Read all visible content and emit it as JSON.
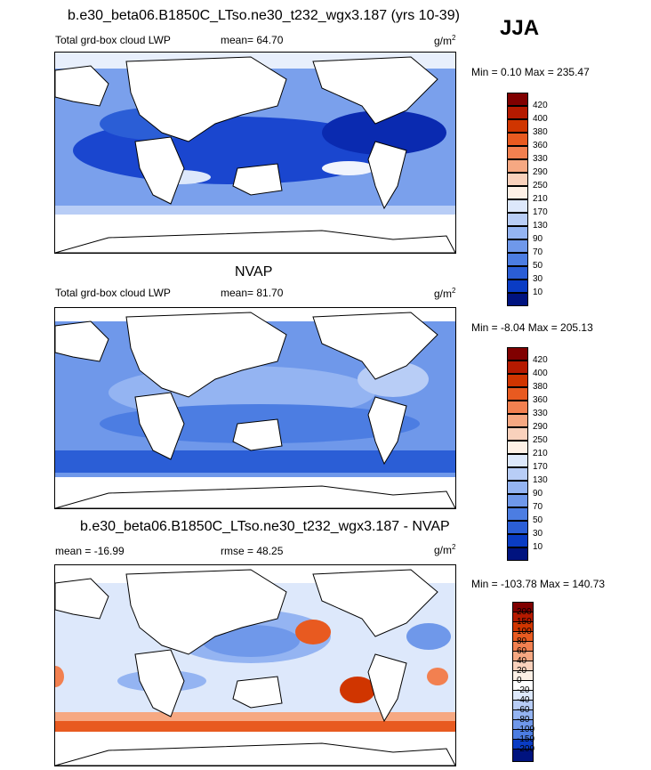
{
  "season": "JJA",
  "panels": [
    {
      "title": "b.e30_beta06.B1850C_LTso.ne30_t232_wgx3.187 (yrs 10-39)",
      "left_label": "Total grd-box cloud LWP",
      "mid_label": "mean=  64.70",
      "units": "g/m",
      "units_exp": "2",
      "minmax": "Min =   0.10 Max = 235.47",
      "levels": [
        "420",
        "400",
        "380",
        "360",
        "330",
        "290",
        "250",
        "210",
        "170",
        "130",
        "90",
        "70",
        "50",
        "30",
        "10"
      ],
      "colors": [
        "#800000",
        "#b51a00",
        "#d03500",
        "#e85a20",
        "#f28050",
        "#f6a882",
        "#f9d1bc",
        "#fdf0e6",
        "#dde8fb",
        "#b8cdf6",
        "#94b4f2",
        "#6f98ea",
        "#4c7de2",
        "#2b5ed6",
        "#0a3cc4",
        "#00137f"
      ]
    },
    {
      "title": "NVAP",
      "left_label": "Total grd-box cloud LWP",
      "mid_label": "mean=  81.70",
      "units": "g/m",
      "units_exp": "2",
      "minmax": "Min =  -8.04 Max = 205.13",
      "levels": [
        "420",
        "400",
        "380",
        "360",
        "330",
        "290",
        "250",
        "210",
        "170",
        "130",
        "90",
        "70",
        "50",
        "30",
        "10"
      ],
      "colors": [
        "#800000",
        "#b51a00",
        "#d03500",
        "#e85a20",
        "#f28050",
        "#f6a882",
        "#f9d1bc",
        "#fdf0e6",
        "#dde8fb",
        "#b8cdf6",
        "#94b4f2",
        "#6f98ea",
        "#4c7de2",
        "#2b5ed6",
        "#0a3cc4",
        "#00137f"
      ]
    },
    {
      "title": "b.e30_beta06.B1850C_LTso.ne30_t232_wgx3.187 - NVAP",
      "left_label": "mean = -16.99",
      "mid_label": "rmse =  48.25",
      "units": "g/m",
      "units_exp": "2",
      "minmax": "Min = -103.78 Max = 140.73",
      "levels": [
        "200",
        "150",
        "100",
        "80",
        "60",
        "40",
        "20",
        "0",
        "-20",
        "-40",
        "-60",
        "-80",
        "-100",
        "-150",
        "-200"
      ],
      "colors": [
        "#800000",
        "#b51a00",
        "#d03500",
        "#e85a20",
        "#f28050",
        "#f6a882",
        "#f9d1bc",
        "#fdf0e6",
        "#ffffff",
        "#dde8fb",
        "#b8cdf6",
        "#94b4f2",
        "#6f98ea",
        "#4c7de2",
        "#0a3cc4",
        "#00137f"
      ]
    }
  ],
  "chart_data": {
    "type": "heatmap",
    "title": "JJA",
    "panels": [
      {
        "title": "b.e30_beta06.B1850C_LTso.ne30_t232_wgx3.187 (yrs 10-39)",
        "field": "Total grd-box cloud LWP",
        "units": "g/m2",
        "mean": 64.7,
        "min": 0.1,
        "max": 235.47,
        "contour_levels": [
          10,
          30,
          50,
          70,
          90,
          130,
          170,
          210,
          250,
          290,
          330,
          360,
          380,
          400,
          420
        ]
      },
      {
        "title": "NVAP",
        "field": "Total grd-box cloud LWP",
        "units": "g/m2",
        "mean": 81.7,
        "min": -8.04,
        "max": 205.13,
        "contour_levels": [
          10,
          30,
          50,
          70,
          90,
          130,
          170,
          210,
          250,
          290,
          330,
          360,
          380,
          400,
          420
        ]
      },
      {
        "title": "b.e30_beta06.B1850C_LTso.ne30_t232_wgx3.187 - NVAP",
        "units": "g/m2",
        "mean": -16.99,
        "rmse": 48.25,
        "min": -103.78,
        "max": 140.73,
        "contour_levels": [
          -200,
          -150,
          -100,
          -80,
          -60,
          -40,
          -20,
          0,
          20,
          40,
          60,
          80,
          100,
          150,
          200
        ]
      }
    ]
  }
}
